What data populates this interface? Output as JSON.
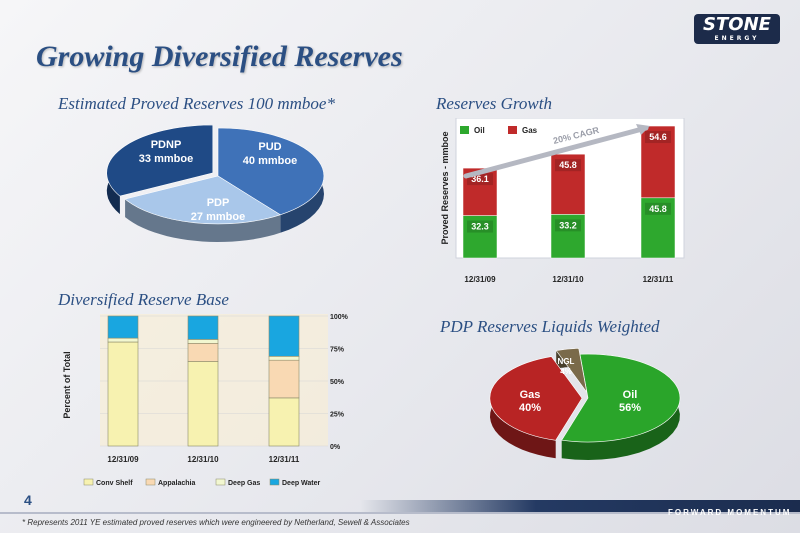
{
  "slide": {
    "title": "Growing Diversified Reserves",
    "logo_text": "STONE",
    "logo_sub": "ENERGY",
    "page_number": "4",
    "footnote": "* Represents 2011 YE estimated proved reserves which were engineered by Netherland, Sewell & Associates",
    "tagline": "FORWARD MOMENTUM"
  },
  "sections": {
    "estimated": "Estimated Proved Reserves 100 mmboe*",
    "growth": "Reserves Growth",
    "diversified": "Diversified Reserve Base",
    "pdp": "PDP Reserves Liquids Weighted"
  },
  "chart_data": [
    {
      "type": "pie",
      "title": "Estimated Proved Reserves 100 mmboe*",
      "labels": [
        "PUD",
        "PDP",
        "PDNP"
      ],
      "value_labels": [
        "40 mmboe",
        "27 mmboe",
        "33 mmboe"
      ],
      "values": [
        40,
        27,
        33
      ],
      "colors": [
        "#3f72b8",
        "#a9c7ea",
        "#1f4a86"
      ]
    },
    {
      "type": "bar",
      "stacked": true,
      "title": "Reserves Growth",
      "ylabel": "Proved Reserves - mmboe",
      "categories": [
        "12/31/09",
        "12/31/10",
        "12/31/11"
      ],
      "series": [
        {
          "name": "Oil",
          "values": [
            32.3,
            33.2,
            45.8
          ],
          "color": "#2ea82e"
        },
        {
          "name": "Gas",
          "values": [
            36.1,
            45.8,
            54.6
          ],
          "color": "#c02a2a"
        }
      ],
      "annotation": "20% CAGR",
      "ylim": [
        0,
        105
      ]
    },
    {
      "type": "bar",
      "stacked": true,
      "title": "Diversified Reserve Base",
      "ylabel": "Percent of Total",
      "categories": [
        "12/31/09",
        "12/31/10",
        "12/31/11"
      ],
      "yticks": [
        "0%",
        "25%",
        "50%",
        "75%",
        "100%"
      ],
      "ylim": [
        0,
        100
      ],
      "series": [
        {
          "name": "Conv Shelf",
          "values": [
            80,
            65,
            37
          ],
          "color": "#f7f2b0"
        },
        {
          "name": "Appalachia",
          "values": [
            0,
            14,
            29
          ],
          "color": "#f9d9b3"
        },
        {
          "name": "Deep Gas",
          "values": [
            3,
            3,
            3
          ],
          "color": "#f2f7d0"
        },
        {
          "name": "Deep Water",
          "values": [
            17,
            18,
            31
          ],
          "color": "#19a6e0"
        }
      ]
    },
    {
      "type": "pie",
      "title": "PDP Reserves Liquids Weighted",
      "labels": [
        "Oil",
        "Gas",
        "NGL"
      ],
      "value_labels": [
        "56%",
        "40%",
        "4%"
      ],
      "values": [
        56,
        40,
        4
      ],
      "colors": [
        "#2aa52a",
        "#b82424",
        "#7a6a4a"
      ]
    }
  ]
}
